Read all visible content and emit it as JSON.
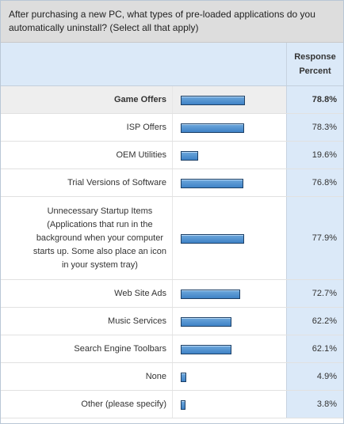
{
  "question": "After purchasing a new PC, what types of pre-loaded applications do you automatically uninstall? (Select all that apply)",
  "header": {
    "percent_label_line1": "Response",
    "percent_label_line2": "Percent"
  },
  "colors": {
    "bar_fill": "#4a8fd1",
    "bar_border": "#1b3f66",
    "percent_column_bg": "#dbe9f8",
    "question_bg": "#dddddd"
  },
  "chart_data": {
    "type": "bar",
    "orientation": "horizontal",
    "categories": [
      "Game Offers",
      "ISP Offers",
      "OEM Utilities",
      "Trial Versions of Software",
      "Unnecessary Startup Items (Applications that run in the background when your computer starts up. Some also place an icon in your system tray)",
      "Web Site Ads",
      "Music Services",
      "Search Engine Toolbars",
      "None",
      "Other (please specify)"
    ],
    "label_lines": [
      [
        "Game Offers"
      ],
      [
        "ISP Offers"
      ],
      [
        "OEM Utilities"
      ],
      [
        "Trial Versions of Software"
      ],
      [
        "Unnecessary Startup Items",
        "(Applications that run in the",
        "background when your computer",
        "starts up. Some also place an icon",
        "in your system tray)"
      ],
      [
        "Web Site Ads"
      ],
      [
        "Music Services"
      ],
      [
        "Search Engine Toolbars"
      ],
      [
        "None"
      ],
      [
        "Other (please specify)"
      ]
    ],
    "values": [
      78.8,
      78.3,
      19.6,
      76.8,
      77.9,
      72.7,
      62.2,
      62.1,
      4.9,
      3.8
    ],
    "value_labels": [
      "78.8%",
      "78.3%",
      "19.6%",
      "76.8%",
      "77.9%",
      "72.7%",
      "62.2%",
      "62.1%",
      "4.9%",
      "3.8%"
    ],
    "highlighted_index": 0,
    "xlim": [
      0,
      100
    ],
    "grid": false,
    "legend": "none"
  }
}
